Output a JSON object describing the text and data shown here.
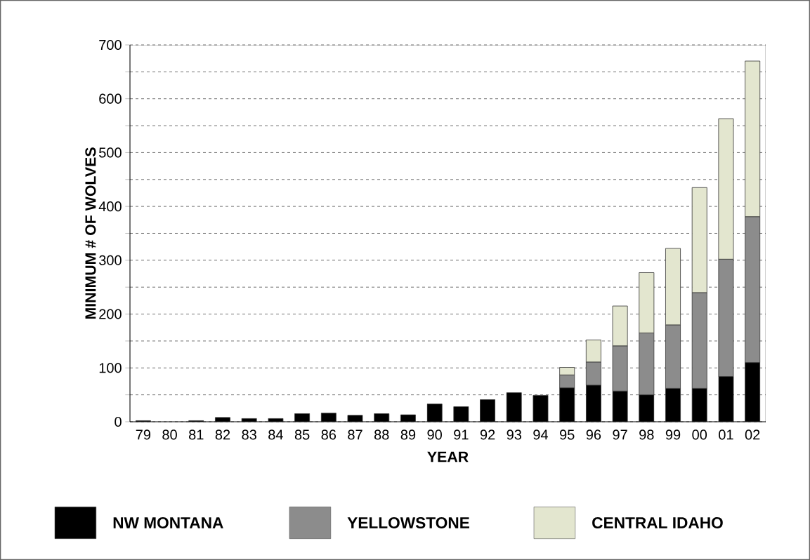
{
  "chart_data": {
    "type": "bar",
    "stacked": true,
    "xlabel": "YEAR",
    "ylabel": "MINIMUM # OF WOLVES",
    "categories": [
      "79",
      "80",
      "81",
      "82",
      "83",
      "84",
      "85",
      "86",
      "87",
      "88",
      "89",
      "90",
      "91",
      "92",
      "93",
      "94",
      "95",
      "96",
      "97",
      "98",
      "99",
      "00",
      "01",
      "02"
    ],
    "series": [
      {
        "name": "NW MONTANA",
        "color": "#000000",
        "values": [
          2,
          null,
          2,
          8,
          6,
          6,
          15,
          16,
          12,
          15,
          13,
          33,
          28,
          41,
          54,
          49,
          63,
          68,
          57,
          50,
          62,
          62,
          84,
          110
        ]
      },
      {
        "name": "YELLOWSTONE",
        "color": "#8c8c8c",
        "values": [
          null,
          null,
          null,
          null,
          null,
          null,
          null,
          null,
          null,
          null,
          null,
          null,
          null,
          null,
          null,
          null,
          24,
          43,
          84,
          115,
          118,
          178,
          218,
          271
        ]
      },
      {
        "name": "CENTRAL IDAHO",
        "color": "#e3e6cf",
        "values": [
          null,
          null,
          null,
          null,
          null,
          null,
          null,
          null,
          null,
          null,
          null,
          null,
          null,
          null,
          null,
          null,
          14,
          41,
          74,
          112,
          142,
          195,
          261,
          289
        ]
      }
    ],
    "ylim": [
      0,
      700
    ],
    "yticks": [
      0,
      {
        "value": 50,
        "label": null
      },
      100,
      {
        "value": 150,
        "label": null
      },
      200,
      {
        "value": 250,
        "label": null
      },
      300,
      {
        "value": 350,
        "label": null
      },
      400,
      {
        "value": 450,
        "label": null
      },
      500,
      {
        "value": 550,
        "label": null
      },
      600,
      {
        "value": 650,
        "label": null
      },
      700
    ],
    "grid": "y",
    "legend": "bottom"
  }
}
